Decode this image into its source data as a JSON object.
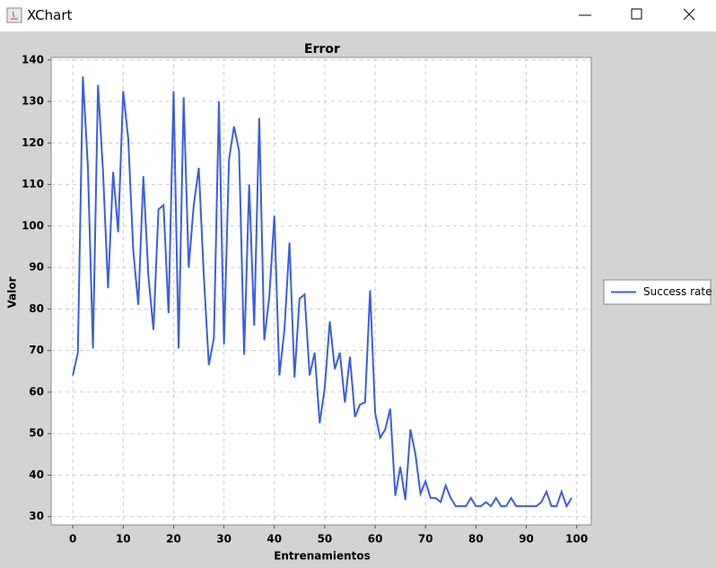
{
  "window": {
    "title": "XChart"
  },
  "chart_data": {
    "type": "line",
    "title": "Error",
    "x_label": "Entrenamientos",
    "y_label": "Valor",
    "x": [
      0,
      1,
      2,
      3,
      4,
      5,
      6,
      7,
      8,
      9,
      10,
      11,
      12,
      13,
      14,
      15,
      16,
      17,
      18,
      19,
      20,
      21,
      22,
      23,
      24,
      25,
      26,
      27,
      28,
      29,
      30,
      31,
      32,
      33,
      34,
      35,
      36,
      37,
      38,
      39,
      40,
      41,
      42,
      43,
      44,
      45,
      46,
      47,
      48,
      49,
      50,
      51,
      52,
      53,
      54,
      55,
      56,
      57,
      58,
      59,
      60,
      61,
      62,
      63,
      64,
      65,
      66,
      67,
      68,
      69,
      70,
      71,
      72,
      73,
      74,
      75,
      76,
      77,
      78,
      79,
      80,
      81,
      82,
      83,
      84,
      85,
      86,
      87,
      88,
      89,
      90,
      91,
      92,
      93,
      94,
      95,
      96,
      97,
      98,
      99
    ],
    "series": [
      {
        "name": "Success rate",
        "color": "#3b5fe0",
        "values": [
          64,
          69.5,
          136,
          114,
          70.5,
          134,
          113,
          85,
          113,
          98.5,
          132.5,
          121,
          94,
          81,
          112,
          88,
          75,
          104,
          105,
          79,
          132.5,
          70.5,
          131,
          90,
          105,
          114,
          88,
          66.5,
          73,
          130,
          71.5,
          116,
          124,
          118,
          69,
          110,
          76,
          126,
          72.5,
          83,
          102.5,
          64,
          75,
          96,
          63.5,
          82.5,
          83.5,
          64,
          69.5,
          52.5,
          61,
          77,
          65.5,
          69.5,
          57.5,
          68.5,
          54,
          57,
          57.5,
          84.5,
          55,
          49,
          51,
          56,
          35,
          42,
          34,
          51,
          45,
          35.5,
          38.5,
          34.5,
          34.5,
          33.5,
          37.5,
          34.5,
          32.5,
          32.5,
          32.5,
          34.5,
          32.5,
          32.5,
          33.5,
          32.5,
          34.5,
          32.5,
          32.5,
          34.5,
          32.5,
          32.5,
          32.5,
          32.5,
          32.5,
          33.5,
          36,
          32.5,
          32.5,
          36,
          32.5,
          34.5
        ]
      }
    ],
    "xlim": [
      -4.3,
      102.9
    ],
    "ylim": [
      28,
      140.6
    ],
    "xticks": [
      0,
      10,
      20,
      30,
      40,
      50,
      60,
      70,
      80,
      90,
      100
    ],
    "yticks": [
      30,
      40,
      50,
      60,
      70,
      80,
      90,
      100,
      110,
      120,
      130,
      140
    ],
    "grid": true,
    "legend": "right"
  }
}
